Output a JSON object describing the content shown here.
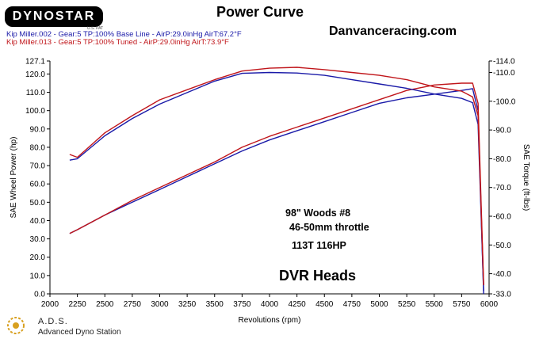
{
  "header": {
    "logo_text": "DYNOSTAR",
    "logo_sub": "U.S. PAT",
    "title": "Power Curve",
    "site": "Danvanceracing.com"
  },
  "runs": [
    {
      "label": "Kip Miller.002 - Gear:5 TP:100%  Base Line  - AirP:29.0inHg AirT:67.2°F",
      "color": "#1a1aa8"
    },
    {
      "label": "Kip Miller.013 - Gear:5 TP:100% Tuned   - AirP:29.0inHg AirT:73.9°F",
      "color": "#c0151a"
    }
  ],
  "annotations": [
    "98\"  Woods #8",
    "46-50mm throttle",
    "113T 116HP",
    "DVR Heads"
  ],
  "footer": {
    "ads_title": "A.D.S.",
    "ads_subtitle": "Advanced Dyno Station"
  },
  "chart_data": {
    "type": "line",
    "xlabel": "Revolutions (rpm)",
    "ylabel": "SAE Wheel Power (hp)",
    "y2label": "SAE Torque (ft-lbs)",
    "xlim": [
      2000,
      6000
    ],
    "ylim": [
      0,
      127.1
    ],
    "y2lim": [
      33.0,
      114.0
    ],
    "x_ticks": [
      "2000",
      "2250",
      "2500",
      "2750",
      "3000",
      "3250",
      "3500",
      "3750",
      "4000",
      "4250",
      "4500",
      "4750",
      "5000",
      "5250",
      "5500",
      "5750",
      "6000"
    ],
    "y_ticks": [
      "127.1",
      "120.0",
      "110.0",
      "100.0",
      "90.0",
      "80.0",
      "70.0",
      "60.0",
      "50.0",
      "40.0",
      "30.0",
      "20.0",
      "10.0",
      "0.0"
    ],
    "y2_ticks": [
      "-114.0",
      "-110.0",
      "-100.0",
      "-90.0",
      "-80.0",
      "-70.0",
      "-60.0",
      "-50.0",
      "-40.0",
      "-33.0"
    ],
    "grid": false,
    "series": [
      {
        "name": "Base Line",
        "axis": "power",
        "color": "#1a1aa8",
        "x": [
          2180,
          2250,
          2500,
          2750,
          3000,
          3250,
          3500,
          3750,
          4000,
          4250,
          4500,
          4750,
          5000,
          5250,
          5500,
          5750,
          5850,
          5900,
          5950
        ],
        "y": [
          33,
          35,
          43,
          50,
          57,
          64,
          71,
          78,
          84,
          89,
          94,
          99,
          104,
          107,
          109,
          111,
          112,
          100,
          0
        ]
      },
      {
        "name": "Tuned",
        "axis": "power",
        "color": "#c0151a",
        "x": [
          2180,
          2250,
          2500,
          2750,
          3000,
          3250,
          3500,
          3750,
          4000,
          4250,
          4500,
          4750,
          5000,
          5250,
          5500,
          5750,
          5850,
          5900,
          5950
        ],
        "y": [
          33,
          35,
          43,
          51,
          58,
          65,
          72,
          80,
          86,
          91,
          96,
          101,
          106,
          111,
          114,
          115,
          115,
          104,
          5
        ]
      },
      {
        "name": "Base Line",
        "axis": "torque",
        "color": "#1a1aa8",
        "x": [
          2180,
          2250,
          2500,
          2750,
          3000,
          3250,
          3500,
          3750,
          4000,
          4250,
          4500,
          4750,
          5000,
          5250,
          5500,
          5750,
          5850,
          5900,
          5950
        ],
        "y": [
          79.5,
          80,
          88,
          94,
          99,
          103,
          107,
          109.7,
          110,
          109.8,
          109,
          107.5,
          106,
          104.5,
          102.5,
          101,
          99.5,
          92,
          34
        ]
      },
      {
        "name": "Tuned",
        "axis": "torque",
        "color": "#c0151a",
        "x": [
          2180,
          2250,
          2500,
          2750,
          3000,
          3250,
          3500,
          3750,
          4000,
          4250,
          4500,
          4750,
          5000,
          5250,
          5500,
          5750,
          5850,
          5900,
          5950
        ],
        "y": [
          81.5,
          80.5,
          89,
          95,
          100.5,
          104,
          107.5,
          110.5,
          111.5,
          111.8,
          111,
          110,
          109,
          107.5,
          105,
          103.5,
          101.5,
          95,
          36
        ]
      }
    ]
  }
}
